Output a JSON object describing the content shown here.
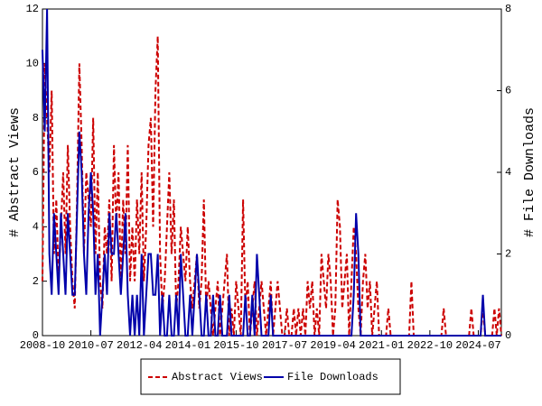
{
  "chart_data": {
    "type": "line",
    "x": [
      "2008-10",
      "2008-11",
      "2008-12",
      "2009-01",
      "2009-02",
      "2009-03",
      "2009-04",
      "2009-05",
      "2009-06",
      "2009-07",
      "2009-08",
      "2009-09",
      "2009-10",
      "2009-11",
      "2009-12",
      "2010-01",
      "2010-02",
      "2010-03",
      "2010-04",
      "2010-05",
      "2010-06",
      "2010-07",
      "2010-08",
      "2010-09",
      "2010-10",
      "2010-11",
      "2010-12",
      "2011-01",
      "2011-02",
      "2011-03",
      "2011-04",
      "2011-05",
      "2011-06",
      "2011-07",
      "2011-08",
      "2011-09",
      "2011-10",
      "2011-11",
      "2011-12",
      "2012-01",
      "2012-02",
      "2012-03",
      "2012-04",
      "2012-05",
      "2012-06",
      "2012-07",
      "2012-08",
      "2012-09",
      "2012-10",
      "2012-11",
      "2012-12",
      "2013-01",
      "2013-02",
      "2013-03",
      "2013-04",
      "2013-05",
      "2013-06",
      "2013-07",
      "2013-08",
      "2013-09",
      "2013-10",
      "2013-11",
      "2013-12",
      "2014-01",
      "2014-02",
      "2014-03",
      "2014-04",
      "2014-05",
      "2014-06",
      "2014-07",
      "2014-08",
      "2014-09",
      "2014-10",
      "2014-11",
      "2014-12",
      "2015-01",
      "2015-02",
      "2015-03",
      "2015-04",
      "2015-05",
      "2015-06",
      "2015-07",
      "2015-08",
      "2015-09",
      "2015-10",
      "2015-11",
      "2015-12",
      "2016-01",
      "2016-02",
      "2016-03",
      "2016-04",
      "2016-05",
      "2016-06",
      "2016-07",
      "2016-08",
      "2016-09",
      "2016-10",
      "2016-11",
      "2016-12",
      "2017-01",
      "2017-02",
      "2017-03",
      "2017-04",
      "2017-05",
      "2017-06",
      "2017-07",
      "2017-08",
      "2017-09",
      "2017-10",
      "2017-11",
      "2017-12",
      "2018-01",
      "2018-02",
      "2018-03",
      "2018-04",
      "2018-05",
      "2018-06",
      "2018-07",
      "2018-08",
      "2018-09",
      "2018-10",
      "2018-11",
      "2018-12",
      "2019-01",
      "2019-02",
      "2019-03",
      "2019-04",
      "2019-05",
      "2019-06",
      "2019-07",
      "2019-08",
      "2019-09",
      "2019-10",
      "2019-11",
      "2019-12",
      "2020-01",
      "2020-02",
      "2020-03",
      "2020-04",
      "2020-05",
      "2020-06",
      "2020-07",
      "2020-08",
      "2020-09",
      "2020-10",
      "2020-11",
      "2020-12",
      "2021-01",
      "2021-02",
      "2021-03",
      "2021-04",
      "2021-05",
      "2021-06",
      "2021-07",
      "2021-08",
      "2021-09",
      "2021-10",
      "2021-11",
      "2021-12",
      "2022-01",
      "2022-02",
      "2022-03",
      "2022-04",
      "2022-05",
      "2022-06",
      "2022-07",
      "2022-08",
      "2022-09",
      "2022-10",
      "2022-11",
      "2022-12",
      "2023-01",
      "2023-02",
      "2023-03",
      "2023-04",
      "2023-05",
      "2023-06",
      "2023-07",
      "2023-08",
      "2023-09",
      "2023-10",
      "2023-11",
      "2023-12",
      "2024-01",
      "2024-02",
      "2024-03",
      "2024-04",
      "2024-05",
      "2024-06",
      "2024-07",
      "2024-08",
      "2024-09",
      "2024-10",
      "2024-11",
      "2024-12",
      "2025-01",
      "2025-02",
      "2025-03",
      "2025-04",
      "2025-05"
    ],
    "series": [
      {
        "name": "Abstract Views",
        "color": "#cc0000",
        "dash": true,
        "axis": "y",
        "values": [
          2,
          10,
          8,
          6,
          9,
          3,
          5,
          2,
          4,
          6,
          3,
          7,
          4,
          2,
          1,
          5,
          10,
          7,
          3,
          6,
          5,
          4,
          8,
          3,
          6,
          2,
          1,
          4,
          3,
          5,
          2,
          7,
          4,
          6,
          2,
          5,
          3,
          7,
          2,
          4,
          2,
          5,
          3,
          6,
          2,
          4,
          7,
          8,
          4,
          9,
          11,
          3,
          1,
          2,
          4,
          6,
          3,
          5,
          1,
          2,
          4,
          3,
          2,
          4,
          2,
          1,
          2,
          3,
          1,
          2,
          5,
          1,
          2,
          1,
          0,
          1,
          2,
          0,
          1,
          2,
          3,
          0,
          1,
          0,
          2,
          1,
          0,
          5,
          1,
          2,
          0,
          1,
          2,
          0,
          1,
          2,
          1,
          0,
          1,
          2,
          0,
          1,
          2,
          1,
          0,
          0,
          1,
          0,
          0,
          1,
          0,
          1,
          0,
          1,
          0,
          2,
          1,
          2,
          0,
          1,
          0,
          3,
          2,
          1,
          3,
          2,
          0,
          1,
          5,
          4,
          1,
          2,
          3,
          0,
          2,
          4,
          3,
          1,
          0,
          2,
          3,
          1,
          2,
          0,
          1,
          2,
          0,
          0,
          0,
          0,
          1,
          0,
          0,
          0,
          0,
          0,
          0,
          0,
          0,
          0,
          2,
          0,
          0,
          0,
          0,
          0,
          0,
          0,
          0,
          0,
          0,
          0,
          0,
          0,
          1,
          0,
          0,
          0,
          0,
          0,
          0,
          0,
          0,
          0,
          0,
          0,
          1,
          0,
          0,
          0,
          0,
          1,
          0,
          0,
          0,
          0,
          1,
          0,
          1,
          0
        ]
      },
      {
        "name": "File Downloads",
        "color": "#0000aa",
        "dash": false,
        "axis": "y2",
        "values": [
          7,
          5,
          8,
          2,
          1,
          3,
          2,
          1,
          3,
          2,
          1,
          3,
          2,
          1,
          1,
          3,
          5,
          4,
          2,
          1,
          3,
          4,
          3,
          1,
          2,
          0,
          1,
          2,
          1,
          3,
          2,
          2,
          3,
          2,
          1,
          2,
          3,
          1,
          0,
          1,
          0,
          1,
          0,
          2,
          0,
          1,
          2,
          2,
          1,
          1,
          2,
          0,
          1,
          0,
          0,
          1,
          0,
          0,
          1,
          0,
          2,
          1,
          0,
          0,
          1,
          0,
          1,
          2,
          1,
          0,
          0,
          1,
          0,
          0,
          1,
          0,
          0,
          1,
          0,
          0,
          0,
          1,
          0,
          0,
          0,
          0,
          0,
          0,
          1,
          0,
          0,
          1,
          0,
          2,
          1,
          0,
          0,
          0,
          0,
          1,
          0,
          0,
          0,
          0,
          0,
          0,
          0,
          0,
          0,
          0,
          0,
          0,
          0,
          0,
          0,
          0,
          0,
          0,
          0,
          0,
          0,
          0,
          0,
          0,
          0,
          0,
          0,
          0,
          0,
          0,
          0,
          0,
          0,
          0,
          0,
          1,
          3,
          2,
          0,
          0,
          0,
          0,
          0,
          0,
          0,
          0,
          0,
          0,
          0,
          0,
          0,
          0,
          0,
          0,
          0,
          0,
          0,
          0,
          0,
          0,
          0,
          0,
          0,
          0,
          0,
          0,
          0,
          0,
          0,
          0,
          0,
          0,
          0,
          0,
          0,
          0,
          0,
          0,
          0,
          0,
          0,
          0,
          0,
          0,
          0,
          0,
          0,
          0,
          0,
          0,
          0,
          1,
          0,
          0,
          0,
          0,
          0,
          0,
          0,
          0
        ]
      }
    ],
    "ylabel": "# Abstract Views",
    "y2label": "# File Downloads",
    "xlim": [
      "2008-10",
      "2025-05"
    ],
    "xticks": [
      "2008-10",
      "2010-07",
      "2012-04",
      "2014-01",
      "2015-10",
      "2017-07",
      "2019-04",
      "2021-01",
      "2022-10",
      "2024-07"
    ],
    "ylim": [
      0,
      12
    ],
    "yticks": [
      0,
      2,
      4,
      6,
      8,
      10,
      12
    ],
    "y2lim": [
      0,
      8
    ],
    "y2ticks": [
      0,
      2,
      4,
      6,
      8
    ],
    "legend": "bottom"
  }
}
